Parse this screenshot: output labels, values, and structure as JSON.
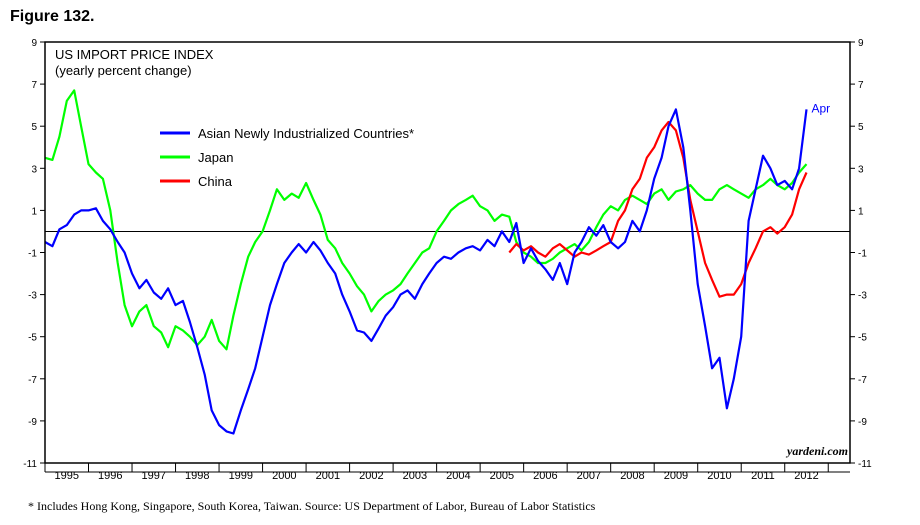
{
  "figure_label": "Figure 132.",
  "footnote": "*   Includes Hong Kong, Singapore, South Korea, Taiwan. Source: US Department of Labor, Bureau of Labor Statistics",
  "chart_data": {
    "type": "line",
    "title": "US IMPORT PRICE INDEX",
    "subtitle": "(yearly percent change)",
    "xlabel": "",
    "ylabel": "",
    "xlim": [
      1994.5,
      2013.0
    ],
    "ylim": [
      -11,
      9
    ],
    "yticks": [
      9,
      7,
      5,
      3,
      1,
      -1,
      -3,
      -5,
      -7,
      -9,
      -11
    ],
    "xtick_labels": [
      "1995",
      "1996",
      "1997",
      "1998",
      "1999",
      "2000",
      "2001",
      "2002",
      "2003",
      "2004",
      "2005",
      "2006",
      "2007",
      "2008",
      "2009",
      "2010",
      "2011",
      "2012"
    ],
    "grid": false,
    "zero_line": true,
    "legend_position": "top-left",
    "watermark": "yardeni.com",
    "end_annotation": "Apr",
    "colors": {
      "asian": "#0000ff",
      "japan": "#00ff00",
      "china": "#ff0000"
    },
    "series": [
      {
        "name": "Asian Newly Industrialized Countries*",
        "color": "#0000ff",
        "points": [
          [
            1994.5,
            -0.5
          ],
          [
            1994.67,
            -0.7
          ],
          [
            1994.83,
            0.1
          ],
          [
            1995.0,
            0.3
          ],
          [
            1995.17,
            0.8
          ],
          [
            1995.33,
            1.0
          ],
          [
            1995.5,
            1.0
          ],
          [
            1995.67,
            1.1
          ],
          [
            1995.83,
            0.5
          ],
          [
            1996.0,
            0.1
          ],
          [
            1996.17,
            -0.5
          ],
          [
            1996.33,
            -1.0
          ],
          [
            1996.5,
            -2.0
          ],
          [
            1996.67,
            -2.7
          ],
          [
            1996.83,
            -2.3
          ],
          [
            1997.0,
            -2.9
          ],
          [
            1997.17,
            -3.2
          ],
          [
            1997.33,
            -2.7
          ],
          [
            1997.5,
            -3.5
          ],
          [
            1997.67,
            -3.3
          ],
          [
            1997.83,
            -4.3
          ],
          [
            1998.0,
            -5.5
          ],
          [
            1998.17,
            -6.8
          ],
          [
            1998.33,
            -8.5
          ],
          [
            1998.5,
            -9.2
          ],
          [
            1998.67,
            -9.5
          ],
          [
            1998.83,
            -9.6
          ],
          [
            1999.0,
            -8.5
          ],
          [
            1999.17,
            -7.5
          ],
          [
            1999.33,
            -6.5
          ],
          [
            1999.5,
            -5.0
          ],
          [
            1999.67,
            -3.5
          ],
          [
            1999.83,
            -2.5
          ],
          [
            2000.0,
            -1.5
          ],
          [
            2000.17,
            -1.0
          ],
          [
            2000.33,
            -0.6
          ],
          [
            2000.5,
            -1.0
          ],
          [
            2000.67,
            -0.5
          ],
          [
            2000.83,
            -0.9
          ],
          [
            2001.0,
            -1.5
          ],
          [
            2001.17,
            -2.0
          ],
          [
            2001.33,
            -3.0
          ],
          [
            2001.5,
            -3.8
          ],
          [
            2001.67,
            -4.7
          ],
          [
            2001.83,
            -4.8
          ],
          [
            2002.0,
            -5.2
          ],
          [
            2002.17,
            -4.6
          ],
          [
            2002.33,
            -4.0
          ],
          [
            2002.5,
            -3.6
          ],
          [
            2002.67,
            -3.0
          ],
          [
            2002.83,
            -2.8
          ],
          [
            2003.0,
            -3.2
          ],
          [
            2003.17,
            -2.5
          ],
          [
            2003.33,
            -2.0
          ],
          [
            2003.5,
            -1.5
          ],
          [
            2003.67,
            -1.2
          ],
          [
            2003.83,
            -1.3
          ],
          [
            2004.0,
            -1.0
          ],
          [
            2004.17,
            -0.8
          ],
          [
            2004.33,
            -0.7
          ],
          [
            2004.5,
            -0.9
          ],
          [
            2004.67,
            -0.4
          ],
          [
            2004.83,
            -0.7
          ],
          [
            2005.0,
            0.0
          ],
          [
            2005.17,
            -0.5
          ],
          [
            2005.33,
            0.4
          ],
          [
            2005.5,
            -1.5
          ],
          [
            2005.67,
            -0.8
          ],
          [
            2005.83,
            -1.4
          ],
          [
            2006.0,
            -1.8
          ],
          [
            2006.17,
            -2.3
          ],
          [
            2006.33,
            -1.5
          ],
          [
            2006.5,
            -2.5
          ],
          [
            2006.67,
            -1.0
          ],
          [
            2006.83,
            -0.5
          ],
          [
            2007.0,
            0.2
          ],
          [
            2007.17,
            -0.2
          ],
          [
            2007.33,
            0.3
          ],
          [
            2007.5,
            -0.5
          ],
          [
            2007.67,
            -0.8
          ],
          [
            2007.83,
            -0.5
          ],
          [
            2008.0,
            0.5
          ],
          [
            2008.17,
            0.0
          ],
          [
            2008.33,
            1.0
          ],
          [
            2008.5,
            2.5
          ],
          [
            2008.67,
            3.5
          ],
          [
            2008.83,
            5.0
          ],
          [
            2009.0,
            5.8
          ],
          [
            2009.17,
            4.0
          ],
          [
            2009.33,
            1.0
          ],
          [
            2009.5,
            -2.5
          ],
          [
            2009.67,
            -4.5
          ],
          [
            2009.83,
            -6.5
          ],
          [
            2010.0,
            -6.0
          ],
          [
            2010.17,
            -8.4
          ],
          [
            2010.33,
            -7.0
          ],
          [
            2010.5,
            -5.0
          ],
          [
            2010.67,
            0.5
          ],
          [
            2010.83,
            2.0
          ],
          [
            2011.0,
            3.6
          ],
          [
            2011.17,
            3.0
          ],
          [
            2011.33,
            2.2
          ],
          [
            2011.5,
            2.4
          ],
          [
            2011.67,
            2.0
          ],
          [
            2011.83,
            3.0
          ],
          [
            2012.0,
            5.8
          ]
        ]
      },
      {
        "name": "Japan",
        "color": "#00ff00",
        "points": [
          [
            1994.5,
            3.5
          ],
          [
            1994.67,
            3.4
          ],
          [
            1994.83,
            4.5
          ],
          [
            1995.0,
            6.2
          ],
          [
            1995.17,
            6.7
          ],
          [
            1995.33,
            5.0
          ],
          [
            1995.5,
            3.2
          ],
          [
            1995.67,
            2.8
          ],
          [
            1995.83,
            2.5
          ],
          [
            1996.0,
            1.0
          ],
          [
            1996.17,
            -1.5
          ],
          [
            1996.33,
            -3.5
          ],
          [
            1996.5,
            -4.5
          ],
          [
            1996.67,
            -3.8
          ],
          [
            1996.83,
            -3.5
          ],
          [
            1997.0,
            -4.5
          ],
          [
            1997.17,
            -4.8
          ],
          [
            1997.33,
            -5.5
          ],
          [
            1997.5,
            -4.5
          ],
          [
            1997.67,
            -4.7
          ],
          [
            1997.83,
            -5.0
          ],
          [
            1998.0,
            -5.4
          ],
          [
            1998.17,
            -5.0
          ],
          [
            1998.33,
            -4.2
          ],
          [
            1998.5,
            -5.2
          ],
          [
            1998.67,
            -5.6
          ],
          [
            1998.83,
            -4.0
          ],
          [
            1999.0,
            -2.5
          ],
          [
            1999.17,
            -1.2
          ],
          [
            1999.33,
            -0.5
          ],
          [
            1999.5,
            0.0
          ],
          [
            1999.67,
            1.0
          ],
          [
            1999.83,
            2.0
          ],
          [
            2000.0,
            1.5
          ],
          [
            2000.17,
            1.8
          ],
          [
            2000.33,
            1.6
          ],
          [
            2000.5,
            2.3
          ],
          [
            2000.67,
            1.5
          ],
          [
            2000.83,
            0.8
          ],
          [
            2001.0,
            -0.4
          ],
          [
            2001.17,
            -0.8
          ],
          [
            2001.33,
            -1.5
          ],
          [
            2001.5,
            -2.0
          ],
          [
            2001.67,
            -2.6
          ],
          [
            2001.83,
            -3.0
          ],
          [
            2002.0,
            -3.8
          ],
          [
            2002.17,
            -3.3
          ],
          [
            2002.33,
            -3.0
          ],
          [
            2002.5,
            -2.8
          ],
          [
            2002.67,
            -2.5
          ],
          [
            2002.83,
            -2.0
          ],
          [
            2003.0,
            -1.5
          ],
          [
            2003.17,
            -1.0
          ],
          [
            2003.33,
            -0.8
          ],
          [
            2003.5,
            0.0
          ],
          [
            2003.67,
            0.5
          ],
          [
            2003.83,
            1.0
          ],
          [
            2004.0,
            1.3
          ],
          [
            2004.17,
            1.5
          ],
          [
            2004.33,
            1.7
          ],
          [
            2004.5,
            1.2
          ],
          [
            2004.67,
            1.0
          ],
          [
            2004.83,
            0.5
          ],
          [
            2005.0,
            0.8
          ],
          [
            2005.17,
            0.7
          ],
          [
            2005.33,
            -0.5
          ],
          [
            2005.5,
            -1.0
          ],
          [
            2005.67,
            -1.2
          ],
          [
            2005.83,
            -1.5
          ],
          [
            2006.0,
            -1.5
          ],
          [
            2006.17,
            -1.3
          ],
          [
            2006.33,
            -1.0
          ],
          [
            2006.5,
            -0.8
          ],
          [
            2006.67,
            -0.6
          ],
          [
            2006.83,
            -0.9
          ],
          [
            2007.0,
            -0.5
          ],
          [
            2007.17,
            0.2
          ],
          [
            2007.33,
            0.8
          ],
          [
            2007.5,
            1.2
          ],
          [
            2007.67,
            1.0
          ],
          [
            2007.83,
            1.5
          ],
          [
            2008.0,
            1.7
          ],
          [
            2008.17,
            1.5
          ],
          [
            2008.33,
            1.3
          ],
          [
            2008.5,
            1.8
          ],
          [
            2008.67,
            2.0
          ],
          [
            2008.83,
            1.5
          ],
          [
            2009.0,
            1.9
          ],
          [
            2009.17,
            2.0
          ],
          [
            2009.33,
            2.2
          ],
          [
            2009.5,
            1.8
          ],
          [
            2009.67,
            1.5
          ],
          [
            2009.83,
            1.5
          ],
          [
            2010.0,
            2.0
          ],
          [
            2010.17,
            2.2
          ],
          [
            2010.33,
            2.0
          ],
          [
            2010.5,
            1.8
          ],
          [
            2010.67,
            1.6
          ],
          [
            2010.83,
            2.0
          ],
          [
            2011.0,
            2.2
          ],
          [
            2011.17,
            2.5
          ],
          [
            2011.33,
            2.2
          ],
          [
            2011.5,
            2.0
          ],
          [
            2011.67,
            2.3
          ],
          [
            2011.83,
            2.8
          ],
          [
            2012.0,
            3.2
          ]
        ]
      },
      {
        "name": "China",
        "color": "#ff0000",
        "points": [
          [
            2005.17,
            -1.0
          ],
          [
            2005.33,
            -0.6
          ],
          [
            2005.5,
            -0.9
          ],
          [
            2005.67,
            -0.7
          ],
          [
            2005.83,
            -1.0
          ],
          [
            2006.0,
            -1.2
          ],
          [
            2006.17,
            -0.8
          ],
          [
            2006.33,
            -0.6
          ],
          [
            2006.5,
            -0.9
          ],
          [
            2006.67,
            -1.2
          ],
          [
            2006.83,
            -1.0
          ],
          [
            2007.0,
            -1.1
          ],
          [
            2007.17,
            -0.9
          ],
          [
            2007.33,
            -0.7
          ],
          [
            2007.5,
            -0.5
          ],
          [
            2007.67,
            0.5
          ],
          [
            2007.83,
            1.0
          ],
          [
            2008.0,
            2.0
          ],
          [
            2008.17,
            2.5
          ],
          [
            2008.33,
            3.5
          ],
          [
            2008.5,
            4.0
          ],
          [
            2008.67,
            4.8
          ],
          [
            2008.83,
            5.2
          ],
          [
            2009.0,
            4.8
          ],
          [
            2009.17,
            3.5
          ],
          [
            2009.33,
            1.5
          ],
          [
            2009.5,
            0.0
          ],
          [
            2009.67,
            -1.5
          ],
          [
            2009.83,
            -2.3
          ],
          [
            2010.0,
            -3.1
          ],
          [
            2010.17,
            -3.0
          ],
          [
            2010.33,
            -3.0
          ],
          [
            2010.5,
            -2.5
          ],
          [
            2010.67,
            -1.5
          ],
          [
            2010.83,
            -0.8
          ],
          [
            2011.0,
            0.0
          ],
          [
            2011.17,
            0.2
          ],
          [
            2011.33,
            -0.1
          ],
          [
            2011.5,
            0.2
          ],
          [
            2011.67,
            0.8
          ],
          [
            2011.83,
            2.0
          ],
          [
            2012.0,
            2.8
          ]
        ]
      }
    ]
  }
}
